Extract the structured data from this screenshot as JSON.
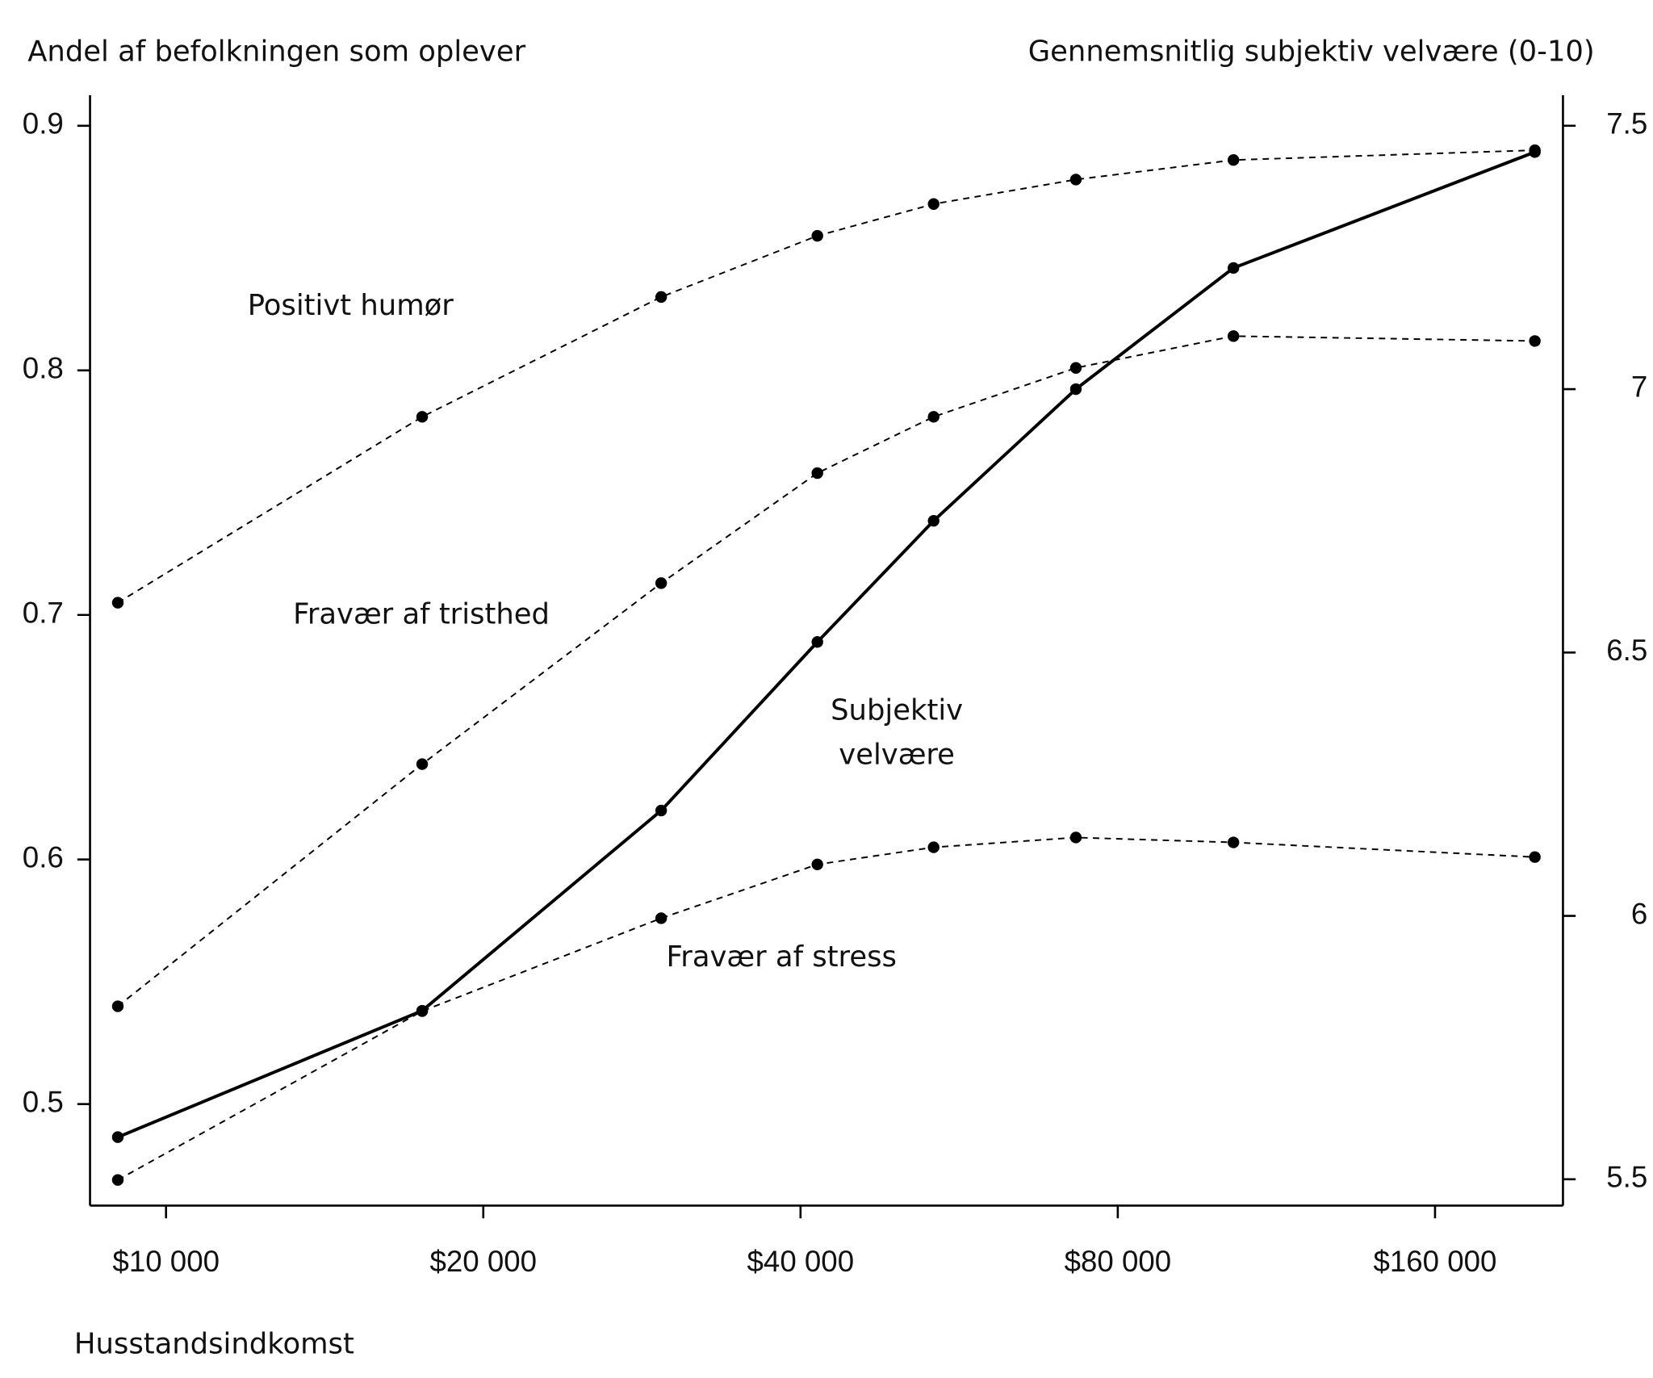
{
  "chart_data": {
    "type": "line",
    "y_label": "Andel af befolkningen som oplever",
    "y2_label": "Gennemsnitlig subjektiv velvære (0-10)",
    "x_label": "Husstandsindkomst",
    "x": [
      9000,
      17500,
      29500,
      41500,
      53500,
      73000,
      103000,
      199000
    ],
    "x_scale": "log",
    "xlim": [
      8470,
      211600
    ],
    "xticks": [
      {
        "value": 10000,
        "label": "$10 000"
      },
      {
        "value": 20000,
        "label": "$20 000"
      },
      {
        "value": 40000,
        "label": "$40 000"
      },
      {
        "value": 80000,
        "label": "$80 000"
      },
      {
        "value": 160000,
        "label": "$160 000"
      }
    ],
    "ylim": [
      0.4585,
      0.9125
    ],
    "yticks": [
      0.5,
      0.6,
      0.7,
      0.8,
      0.9
    ],
    "y2lim": [
      5.45,
      7.558
    ],
    "y2ticks": [
      5.5,
      6,
      6.5,
      7,
      7.5
    ],
    "grid": false,
    "series": [
      {
        "name": "Positivt humør",
        "color": "#000000",
        "style": "dashed",
        "values": [
          0.705,
          0.781,
          0.83,
          0.855,
          0.868,
          0.878,
          0.886,
          0.89
        ]
      },
      {
        "name": "Fravær af tristhed",
        "color": "#000000",
        "style": "dashed",
        "values": [
          0.54,
          0.639,
          0.713,
          0.758,
          0.781,
          0.801,
          0.814,
          0.812
        ]
      },
      {
        "name": "Fravær af stress",
        "color": "#000000",
        "style": "dashed",
        "values": [
          0.469,
          0.538,
          0.576,
          0.598,
          0.605,
          0.609,
          0.607,
          0.601
        ]
      },
      {
        "name": "Subjektiv velvære",
        "color": "#000000",
        "style": "solid",
        "axis": "y2",
        "values": [
          5.58,
          5.82,
          6.2,
          6.52,
          6.75,
          7.0,
          7.23,
          7.45
        ]
      }
    ]
  }
}
